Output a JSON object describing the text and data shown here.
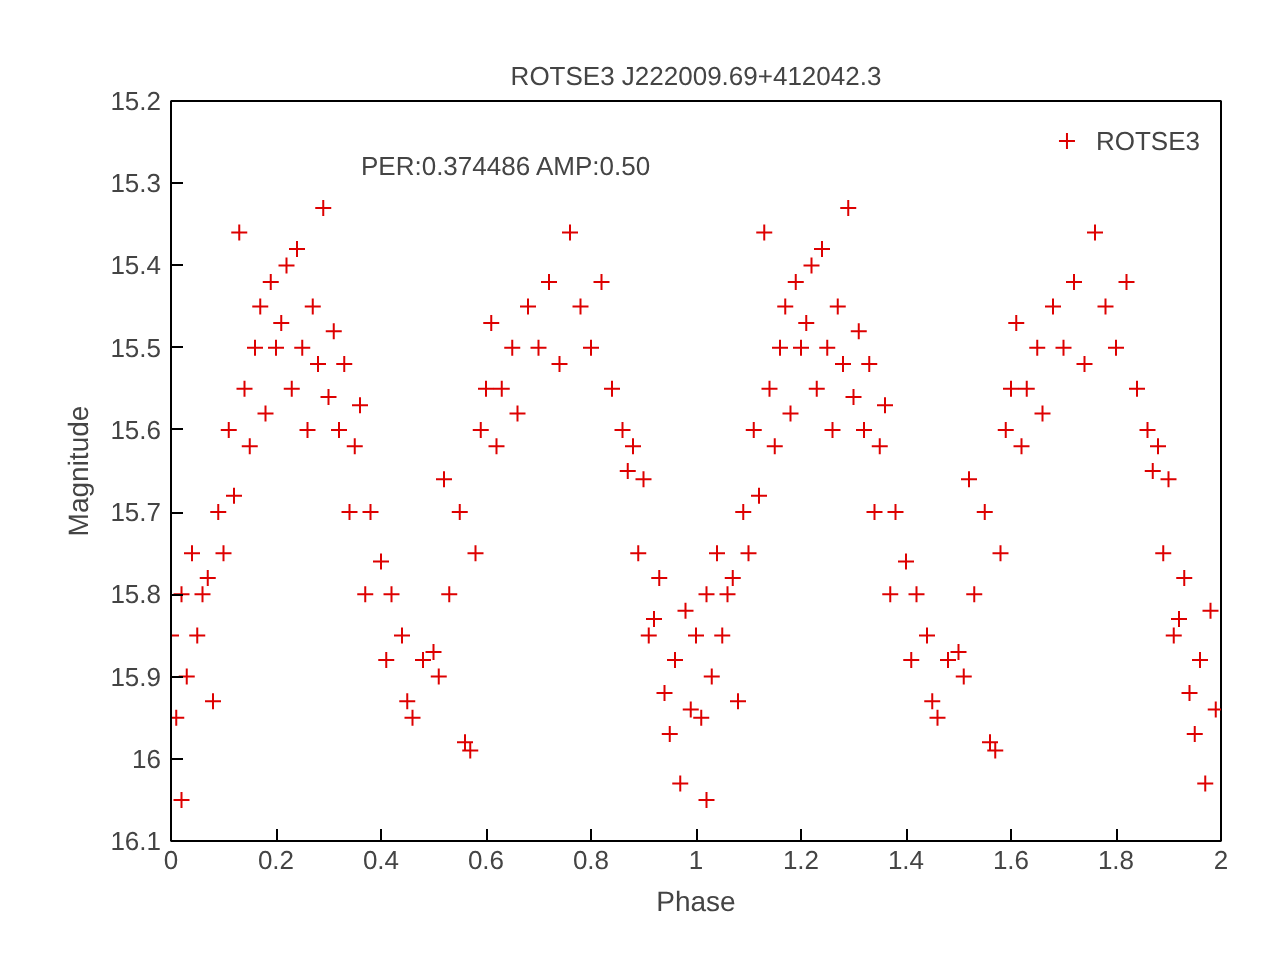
{
  "chart_data": {
    "type": "scatter",
    "title": "ROTSE3 J222009.69+412042.3",
    "xlabel": "Phase",
    "ylabel": "Magnitude",
    "annotations": [
      "PER:0.374486 AMP:0.50"
    ],
    "xlim": [
      0,
      2
    ],
    "xticks": [
      0,
      0.2,
      0.4,
      0.6,
      0.8,
      1,
      1.2,
      1.4,
      1.6,
      1.8,
      2
    ],
    "ylim": [
      16.1,
      15.2
    ],
    "yticks": [
      15.2,
      15.3,
      15.4,
      15.5,
      15.6,
      15.7,
      15.8,
      15.9,
      16,
      16.1
    ],
    "grid": false,
    "legend": "top right",
    "marker": "cross",
    "series": [
      {
        "name": "ROTSE3",
        "color": "#dd0000",
        "x": [
          0.0,
          0.01,
          0.02,
          0.02,
          0.03,
          0.04,
          0.05,
          0.06,
          0.07,
          0.08,
          0.09,
          0.1,
          0.11,
          0.12,
          0.13,
          0.14,
          0.15,
          0.16,
          0.17,
          0.18,
          0.19,
          0.2,
          0.21,
          0.22,
          0.23,
          0.24,
          0.25,
          0.26,
          0.27,
          0.28,
          0.29,
          0.3,
          0.31,
          0.32,
          0.33,
          0.34,
          0.35,
          0.36,
          0.37,
          0.38,
          0.4,
          0.41,
          0.42,
          0.44,
          0.45,
          0.46,
          0.48,
          0.5,
          0.51,
          0.52,
          0.53,
          0.55,
          0.56,
          0.57,
          0.58,
          0.59,
          0.6,
          0.61,
          0.62,
          0.63,
          0.65,
          0.66,
          0.68,
          0.7,
          0.72,
          0.74,
          0.76,
          0.78,
          0.8,
          0.82,
          0.84,
          0.86,
          0.87,
          0.88,
          0.89,
          0.9,
          0.91,
          0.92,
          0.93,
          0.94,
          0.95,
          0.96,
          0.97,
          0.98,
          0.99,
          1.0,
          1.01,
          1.02,
          1.02,
          1.03,
          1.04,
          1.05,
          1.06,
          1.07,
          1.08,
          1.09,
          1.1,
          1.11,
          1.12,
          1.13,
          1.14,
          1.15,
          1.16,
          1.17,
          1.18,
          1.19,
          1.2,
          1.21,
          1.22,
          1.23,
          1.24,
          1.25,
          1.26,
          1.27,
          1.28,
          1.29,
          1.3,
          1.31,
          1.32,
          1.33,
          1.34,
          1.35,
          1.36,
          1.37,
          1.38,
          1.4,
          1.41,
          1.42,
          1.44,
          1.45,
          1.46,
          1.48,
          1.5,
          1.51,
          1.52,
          1.53,
          1.55,
          1.56,
          1.57,
          1.58,
          1.59,
          1.6,
          1.61,
          1.62,
          1.63,
          1.65,
          1.66,
          1.68,
          1.7,
          1.72,
          1.74,
          1.76,
          1.78,
          1.8,
          1.82,
          1.84,
          1.86,
          1.87,
          1.88,
          1.89,
          1.9,
          1.91,
          1.92,
          1.93,
          1.94,
          1.95,
          1.96,
          1.97,
          1.98,
          1.99
        ],
        "values": [
          15.85,
          15.95,
          16.05,
          15.8,
          15.9,
          15.75,
          15.85,
          15.8,
          15.78,
          15.93,
          15.7,
          15.75,
          15.6,
          15.68,
          15.36,
          15.55,
          15.62,
          15.5,
          15.45,
          15.58,
          15.42,
          15.5,
          15.47,
          15.4,
          15.55,
          15.38,
          15.5,
          15.6,
          15.45,
          15.52,
          15.33,
          15.56,
          15.48,
          15.6,
          15.52,
          15.7,
          15.62,
          15.57,
          15.8,
          15.7,
          15.76,
          15.88,
          15.8,
          15.85,
          15.93,
          15.95,
          15.88,
          15.87,
          15.9,
          15.66,
          15.8,
          15.7,
          15.98,
          15.99,
          15.75,
          15.6,
          15.55,
          15.47,
          15.62,
          15.55,
          15.5,
          15.58,
          15.45,
          15.5,
          15.42,
          15.52,
          15.36,
          15.45,
          15.5,
          15.42,
          15.55,
          15.6,
          15.65,
          15.62,
          15.75,
          15.66,
          15.85,
          15.83,
          15.78,
          15.92,
          15.97,
          15.88,
          16.03,
          15.82,
          15.94,
          15.85,
          15.95,
          16.05,
          15.8,
          15.9,
          15.75,
          15.85,
          15.8,
          15.78,
          15.93,
          15.7,
          15.75,
          15.6,
          15.68,
          15.36,
          15.55,
          15.62,
          15.5,
          15.45,
          15.58,
          15.42,
          15.5,
          15.47,
          15.4,
          15.55,
          15.38,
          15.5,
          15.6,
          15.45,
          15.52,
          15.33,
          15.56,
          15.48,
          15.6,
          15.52,
          15.7,
          15.62,
          15.57,
          15.8,
          15.7,
          15.76,
          15.88,
          15.8,
          15.85,
          15.93,
          15.95,
          15.88,
          15.87,
          15.9,
          15.66,
          15.8,
          15.7,
          15.98,
          15.99,
          15.75,
          15.6,
          15.55,
          15.47,
          15.62,
          15.55,
          15.5,
          15.58,
          15.45,
          15.5,
          15.42,
          15.52,
          15.36,
          15.45,
          15.5,
          15.42,
          15.55,
          15.6,
          15.65,
          15.62,
          15.75,
          15.66,
          15.85,
          15.83,
          15.78,
          15.92,
          15.97,
          15.88,
          16.03,
          15.82,
          15.94
        ]
      }
    ]
  }
}
